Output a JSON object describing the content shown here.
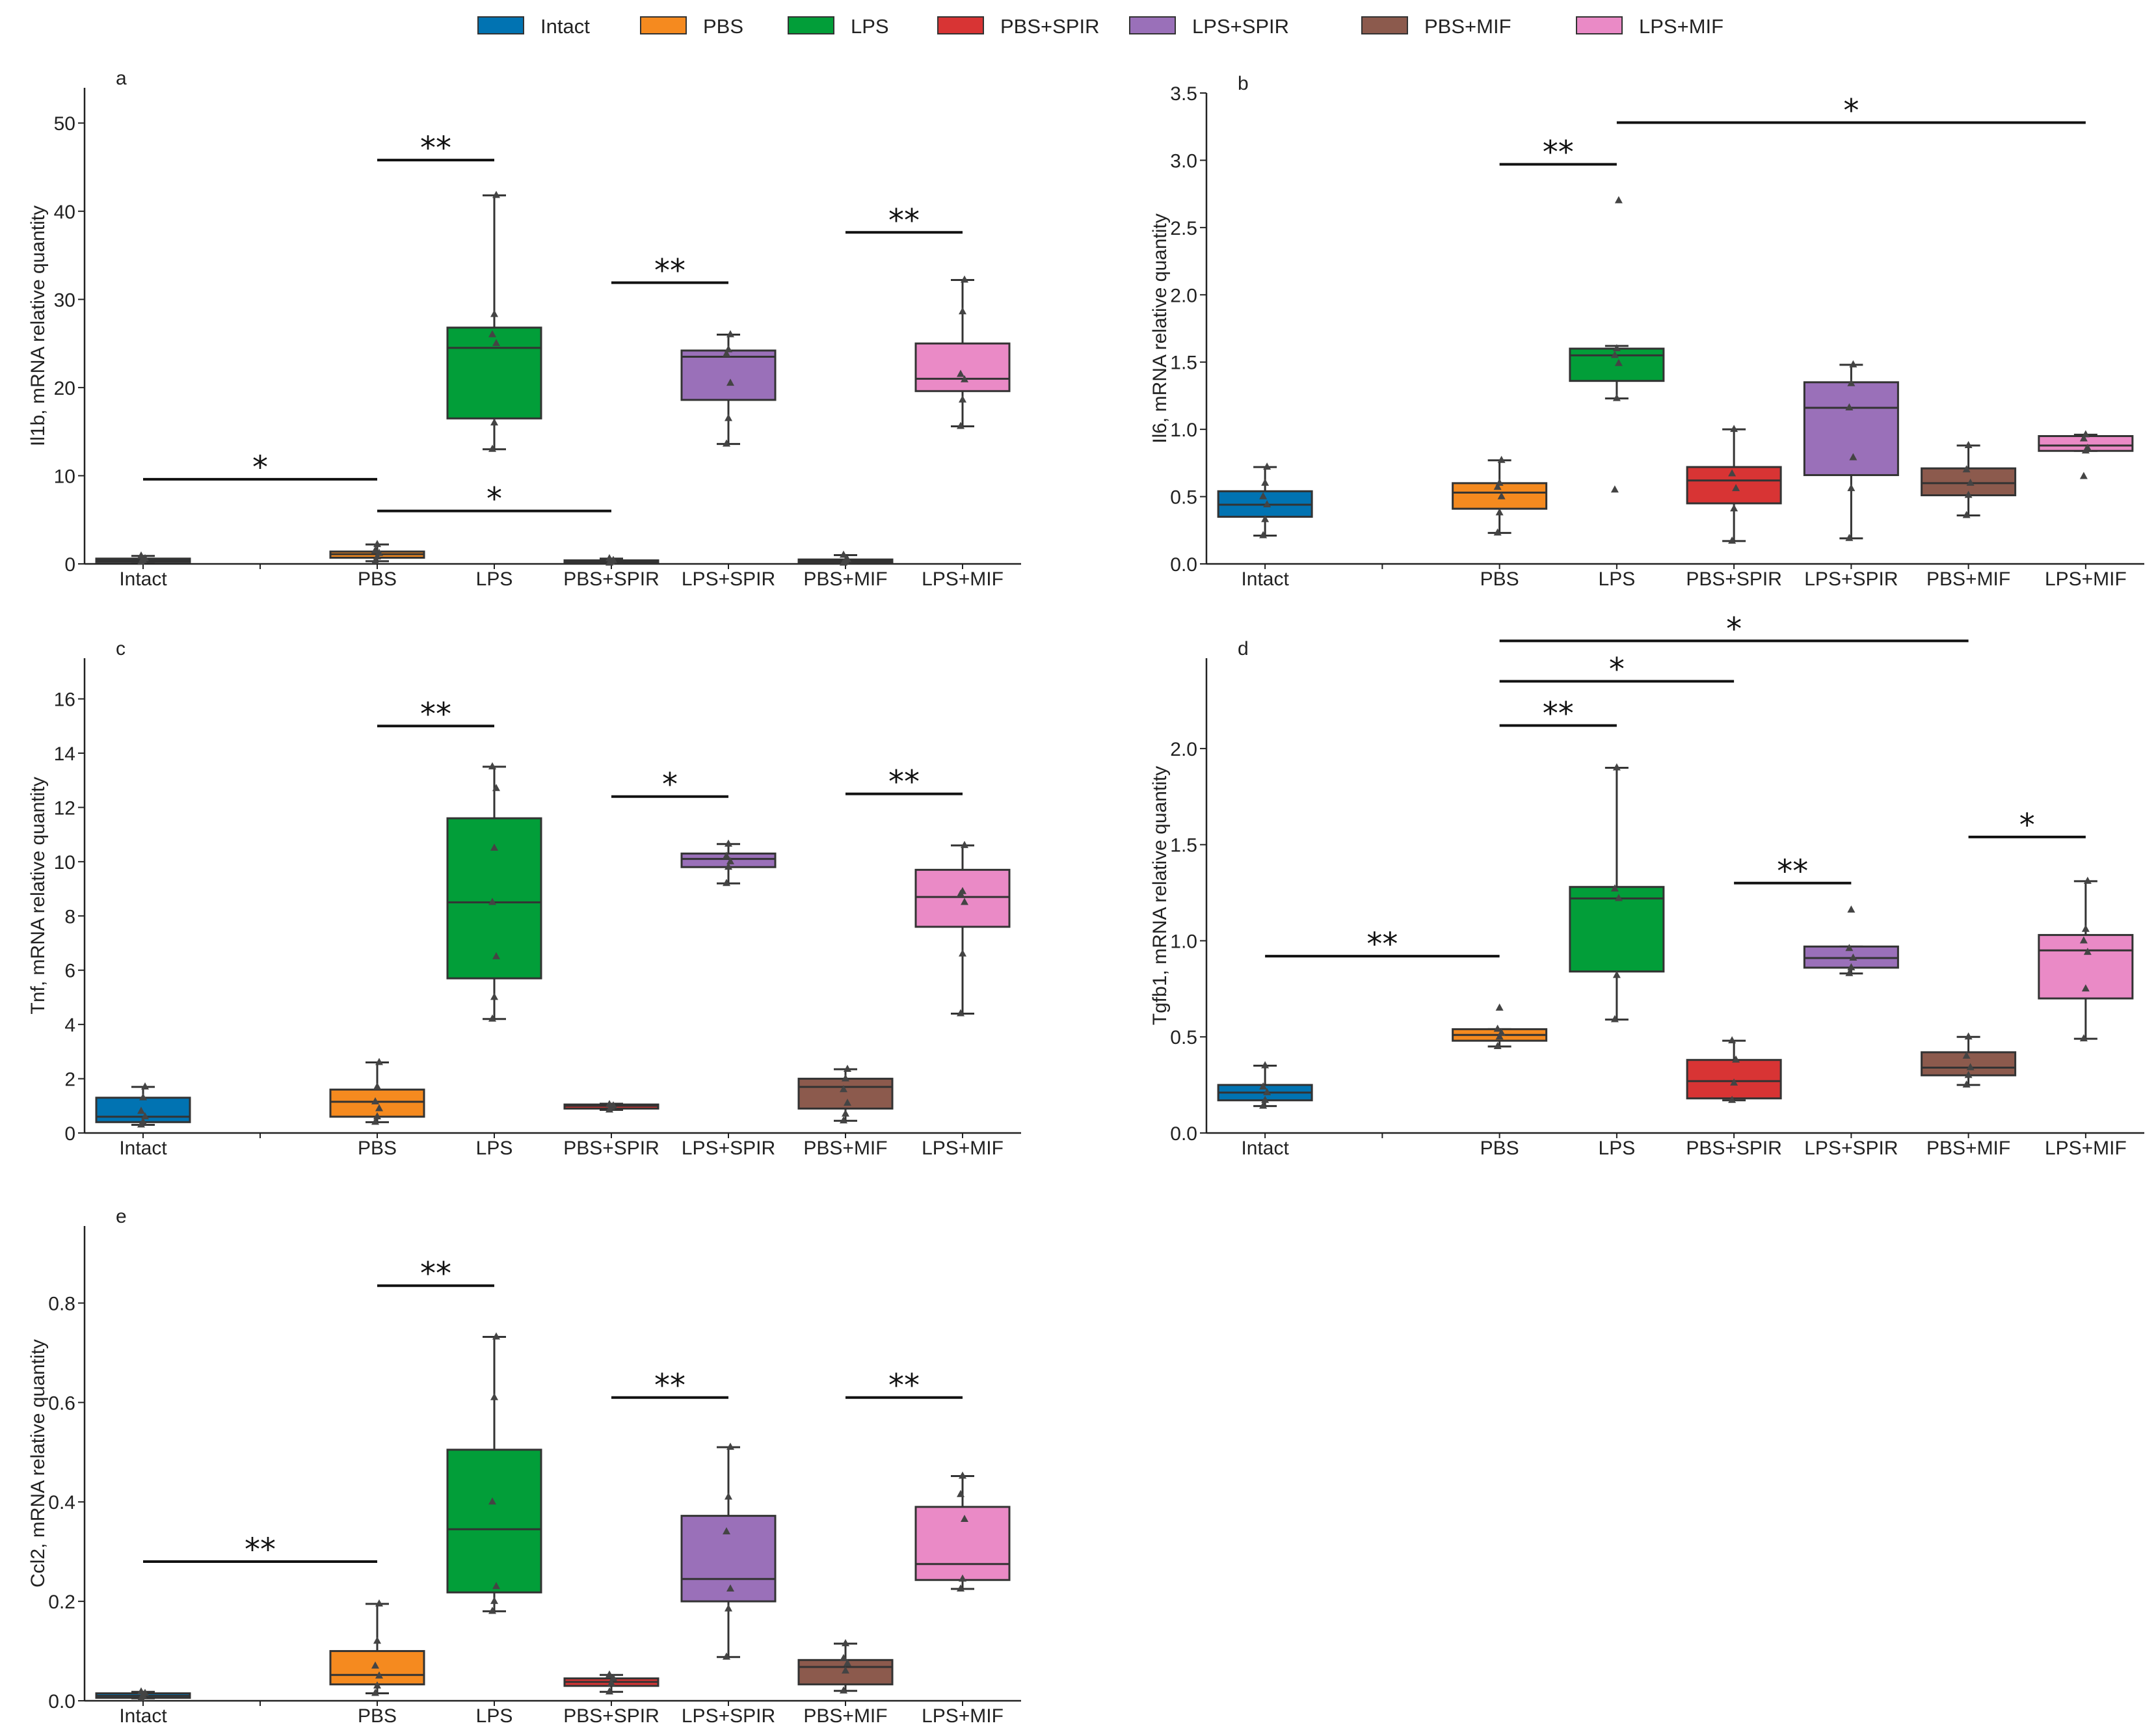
{
  "legend": {
    "items": [
      {
        "label": "Intact",
        "color": "#0173b2"
      },
      {
        "label": "PBS",
        "color": "#f58a1f"
      },
      {
        "label": "LPS",
        "color": "#029e39"
      },
      {
        "label": "PBS+SPIR",
        "color": "#d83434"
      },
      {
        "label": "LPS+SPIR",
        "color": "#9a70b9"
      },
      {
        "label": "PBS+MIF",
        "color": "#8c5a4d"
      },
      {
        "label": "LPS+MIF",
        "color": "#ea8ac6"
      }
    ]
  },
  "chart_data": [
    {
      "panel": "a",
      "type": "box",
      "ylabel": "Il1b, mRNA relative quantity",
      "ylim": [
        0,
        54
      ],
      "yticks": [
        "0",
        "10",
        "20",
        "30",
        "40",
        "50"
      ],
      "categories": [
        "Intact",
        "PBS",
        "LPS",
        "PBS+SPIR",
        "LPS+SPIR",
        "PBS+MIF",
        "LPS+MIF"
      ],
      "boxes": [
        {
          "group": "Intact",
          "min": 0.2,
          "q1": 0.2,
          "median": 0.4,
          "q3": 0.6,
          "max": 0.9,
          "points": [
            0.2,
            0.4,
            0.6,
            0.9
          ]
        },
        {
          "group": "PBS",
          "min": 0.3,
          "q1": 0.7,
          "median": 1.1,
          "q3": 1.4,
          "max": 2.2,
          "points": [
            0.3,
            0.8,
            1.2,
            1.5,
            2.2
          ]
        },
        {
          "group": "LPS",
          "min": 13,
          "q1": 16.5,
          "median": 24.5,
          "q3": 26.8,
          "max": 41.8,
          "points": [
            13,
            16,
            25,
            26,
            28.3,
            41.8
          ]
        },
        {
          "group": "PBS+SPIR",
          "min": 0.1,
          "q1": 0.1,
          "median": 0.2,
          "q3": 0.4,
          "max": 0.6,
          "points": [
            0.1,
            0.2,
            0.4,
            0.6
          ]
        },
        {
          "group": "LPS+SPIR",
          "min": 13.6,
          "q1": 18.6,
          "median": 23.5,
          "q3": 24.2,
          "max": 26,
          "points": [
            13.6,
            16.5,
            20.5,
            23.8,
            24.3,
            26
          ]
        },
        {
          "group": "PBS+MIF",
          "min": 0.1,
          "q1": 0.1,
          "median": 0.3,
          "q3": 0.5,
          "max": 1.0,
          "points": [
            0.1,
            0.3,
            0.5,
            1.0
          ]
        },
        {
          "group": "LPS+MIF",
          "min": 15.6,
          "q1": 19.6,
          "median": 21,
          "q3": 25,
          "max": 32.2,
          "points": [
            15.6,
            18.6,
            20.9,
            21.5,
            28.6,
            32.2
          ]
        }
      ],
      "significance": [
        {
          "from": "Intact",
          "to": "PBS",
          "y": 9.6,
          "label": "*"
        },
        {
          "from": "PBS",
          "to": "PBS+SPIR",
          "y": 6.0,
          "label": "*"
        },
        {
          "from": "PBS",
          "to": "LPS",
          "y": 45.8,
          "label": "**"
        },
        {
          "from": "PBS+SPIR",
          "to": "LPS+SPIR",
          "y": 31.9,
          "label": "**"
        },
        {
          "from": "PBS+MIF",
          "to": "LPS+MIF",
          "y": 37.6,
          "label": "**"
        }
      ]
    },
    {
      "panel": "b",
      "type": "box",
      "ylabel": "Il6, mRNA relative quantity",
      "ylim": [
        0,
        3.5
      ],
      "yticks": [
        "0.0",
        "0.5",
        "1.0",
        "1.5",
        "2.0",
        "2.5",
        "3.0",
        "3.5"
      ],
      "categories": [
        "Intact",
        "PBS",
        "LPS",
        "PBS+SPIR",
        "LPS+SPIR",
        "PBS+MIF",
        "LPS+MIF"
      ],
      "boxes": [
        {
          "group": "Intact",
          "min": 0.21,
          "q1": 0.35,
          "median": 0.44,
          "q3": 0.54,
          "max": 0.72,
          "points": [
            0.21,
            0.33,
            0.44,
            0.5,
            0.6,
            0.72
          ]
        },
        {
          "group": "PBS",
          "min": 0.23,
          "q1": 0.41,
          "median": 0.53,
          "q3": 0.6,
          "max": 0.77,
          "points": [
            0.23,
            0.38,
            0.5,
            0.57,
            0.6,
            0.77
          ]
        },
        {
          "group": "LPS",
          "min": 1.23,
          "q1": 1.36,
          "median": 1.55,
          "q3": 1.6,
          "max": 1.62,
          "points": [
            0.55,
            1.23,
            1.49,
            1.55,
            1.6,
            2.7
          ]
        },
        {
          "group": "PBS+SPIR",
          "min": 0.17,
          "q1": 0.45,
          "median": 0.62,
          "q3": 0.72,
          "max": 1.0,
          "points": [
            0.17,
            0.41,
            0.56,
            0.67,
            1.0
          ]
        },
        {
          "group": "LPS+SPIR",
          "min": 0.19,
          "q1": 0.66,
          "median": 1.16,
          "q3": 1.35,
          "max": 1.48,
          "points": [
            0.19,
            0.56,
            0.79,
            1.16,
            1.34,
            1.48
          ]
        },
        {
          "group": "PBS+MIF",
          "min": 0.36,
          "q1": 0.51,
          "median": 0.6,
          "q3": 0.71,
          "max": 0.88,
          "points": [
            0.36,
            0.51,
            0.6,
            0.7,
            0.88
          ]
        },
        {
          "group": "LPS+MIF",
          "min": 0.84,
          "q1": 0.84,
          "median": 0.88,
          "q3": 0.95,
          "max": 0.96,
          "points": [
            0.65,
            0.84,
            0.86,
            0.93,
            0.96
          ]
        }
      ],
      "significance": [
        {
          "from": "PBS",
          "to": "LPS",
          "y": 2.97,
          "label": "**"
        },
        {
          "from": "LPS",
          "to": "LPS+MIF",
          "y": 3.28,
          "label": "*"
        }
      ]
    },
    {
      "panel": "c",
      "type": "box",
      "ylabel": "Tnf, mRNA relative quantity",
      "ylim": [
        0,
        17.5
      ],
      "yticks": [
        "0",
        "2",
        "4",
        "6",
        "8",
        "10",
        "12",
        "14",
        "16"
      ],
      "categories": [
        "Intact",
        "PBS",
        "LPS",
        "PBS+SPIR",
        "LPS+SPIR",
        "PBS+MIF",
        "LPS+MIF"
      ],
      "boxes": [
        {
          "group": "Intact",
          "min": 0.3,
          "q1": 0.4,
          "median": 0.6,
          "q3": 1.3,
          "max": 1.7,
          "points": [
            0.3,
            0.4,
            0.6,
            0.8,
            1.3,
            1.7
          ]
        },
        {
          "group": "PBS",
          "min": 0.4,
          "q1": 0.6,
          "median": 1.15,
          "q3": 1.6,
          "max": 2.6,
          "points": [
            0.4,
            0.6,
            0.9,
            1.15,
            1.7,
            2.6
          ]
        },
        {
          "group": "LPS",
          "min": 4.2,
          "q1": 5.7,
          "median": 8.5,
          "q3": 11.6,
          "max": 13.5,
          "points": [
            4.2,
            5.0,
            6.5,
            8.5,
            10.5,
            12.7,
            13.5
          ]
        },
        {
          "group": "PBS+SPIR",
          "min": 0.85,
          "q1": 0.9,
          "median": 1.0,
          "q3": 1.05,
          "max": 1.08,
          "points": [
            0.85,
            0.95,
            1.0,
            1.05
          ]
        },
        {
          "group": "LPS+SPIR",
          "min": 9.2,
          "q1": 9.8,
          "median": 10.1,
          "q3": 10.3,
          "max": 10.65,
          "points": [
            9.2,
            9.8,
            10.0,
            10.2,
            10.65
          ]
        },
        {
          "group": "PBS+MIF",
          "min": 0.45,
          "q1": 0.9,
          "median": 1.7,
          "q3": 2.0,
          "max": 2.35,
          "points": [
            0.45,
            0.7,
            1.1,
            1.6,
            2.0,
            2.35
          ]
        },
        {
          "group": "LPS+MIF",
          "min": 4.4,
          "q1": 7.6,
          "median": 8.7,
          "q3": 9.7,
          "max": 10.6,
          "points": [
            4.4,
            6.6,
            8.5,
            8.8,
            8.9,
            10.6
          ]
        }
      ],
      "significance": [
        {
          "from": "PBS",
          "to": "LPS",
          "y": 15.0,
          "label": "**"
        },
        {
          "from": "PBS+SPIR",
          "to": "LPS+SPIR",
          "y": 12.4,
          "label": "*"
        },
        {
          "from": "PBS+MIF",
          "to": "LPS+MIF",
          "y": 12.5,
          "label": "**"
        }
      ]
    },
    {
      "panel": "d",
      "type": "box",
      "ylabel": "Tgfb1, mRNA relative quantity",
      "ylim": [
        0,
        2.47
      ],
      "yticks": [
        "0.0",
        "0.5",
        "1.0",
        "1.5",
        "2.0"
      ],
      "categories": [
        "Intact",
        "PBS",
        "LPS",
        "PBS+SPIR",
        "LPS+SPIR",
        "PBS+MIF",
        "LPS+MIF"
      ],
      "boxes": [
        {
          "group": "Intact",
          "min": 0.14,
          "q1": 0.17,
          "median": 0.21,
          "q3": 0.25,
          "max": 0.35,
          "points": [
            0.14,
            0.17,
            0.21,
            0.24,
            0.35
          ]
        },
        {
          "group": "PBS",
          "min": 0.45,
          "q1": 0.48,
          "median": 0.51,
          "q3": 0.54,
          "max": 0.54,
          "points": [
            0.45,
            0.5,
            0.52,
            0.54,
            0.65
          ]
        },
        {
          "group": "LPS",
          "min": 0.59,
          "q1": 0.84,
          "median": 1.22,
          "q3": 1.28,
          "max": 1.9,
          "points": [
            0.59,
            0.82,
            1.22,
            1.27,
            1.9
          ]
        },
        {
          "group": "PBS+SPIR",
          "min": 0.17,
          "q1": 0.18,
          "median": 0.27,
          "q3": 0.38,
          "max": 0.48,
          "points": [
            0.17,
            0.26,
            0.38,
            0.48
          ]
        },
        {
          "group": "LPS+SPIR",
          "min": 0.83,
          "q1": 0.86,
          "median": 0.91,
          "q3": 0.97,
          "max": 0.97,
          "points": [
            0.83,
            0.86,
            0.91,
            0.96,
            1.16
          ]
        },
        {
          "group": "PBS+MIF",
          "min": 0.25,
          "q1": 0.3,
          "median": 0.34,
          "q3": 0.42,
          "max": 0.5,
          "points": [
            0.25,
            0.3,
            0.34,
            0.4,
            0.5
          ]
        },
        {
          "group": "LPS+MIF",
          "min": 0.49,
          "q1": 0.7,
          "median": 0.95,
          "q3": 1.03,
          "max": 1.31,
          "points": [
            0.49,
            0.75,
            0.94,
            1.0,
            1.06,
            1.31
          ]
        }
      ],
      "significance": [
        {
          "from": "Intact",
          "to": "PBS",
          "y": 0.92,
          "label": "**"
        },
        {
          "from": "PBS",
          "to": "LPS",
          "y": 2.12,
          "label": "**"
        },
        {
          "from": "PBS",
          "to": "PBS+SPIR",
          "y": 2.35,
          "label": "*"
        },
        {
          "from": "PBS",
          "to": "PBS+MIF",
          "y": 2.56,
          "label": "*"
        },
        {
          "from": "PBS+SPIR",
          "to": "LPS+SPIR",
          "y": 1.3,
          "label": "**"
        },
        {
          "from": "PBS+MIF",
          "to": "LPS+MIF",
          "y": 1.54,
          "label": "*"
        }
      ]
    },
    {
      "panel": "e",
      "type": "box",
      "ylabel": "Ccl2, mRNA relative quantity",
      "ylim": [
        0,
        0.955
      ],
      "yticks": [
        "0.0",
        "0.2",
        "0.4",
        "0.6",
        "0.8"
      ],
      "categories": [
        "Intact",
        "PBS",
        "LPS",
        "PBS+SPIR",
        "LPS+SPIR",
        "PBS+MIF",
        "LPS+MIF"
      ],
      "boxes": [
        {
          "group": "Intact",
          "min": 0.005,
          "q1": 0.006,
          "median": 0.01,
          "q3": 0.015,
          "max": 0.018,
          "points": [
            0.005,
            0.01,
            0.015,
            0.018
          ]
        },
        {
          "group": "PBS",
          "min": 0.015,
          "q1": 0.033,
          "median": 0.052,
          "q3": 0.1,
          "max": 0.195,
          "points": [
            0.015,
            0.03,
            0.05,
            0.07,
            0.12,
            0.195
          ]
        },
        {
          "group": "LPS",
          "min": 0.18,
          "q1": 0.218,
          "median": 0.345,
          "q3": 0.505,
          "max": 0.732,
          "points": [
            0.18,
            0.2,
            0.23,
            0.4,
            0.61,
            0.732
          ]
        },
        {
          "group": "PBS+SPIR",
          "min": 0.018,
          "q1": 0.03,
          "median": 0.038,
          "q3": 0.045,
          "max": 0.052,
          "points": [
            0.018,
            0.035,
            0.045,
            0.052
          ]
        },
        {
          "group": "LPS+SPIR",
          "min": 0.088,
          "q1": 0.2,
          "median": 0.245,
          "q3": 0.372,
          "max": 0.51,
          "points": [
            0.088,
            0.185,
            0.225,
            0.34,
            0.41,
            0.51
          ]
        },
        {
          "group": "PBS+MIF",
          "min": 0.02,
          "q1": 0.033,
          "median": 0.068,
          "q3": 0.082,
          "max": 0.115,
          "points": [
            0.02,
            0.06,
            0.075,
            0.085,
            0.115
          ]
        },
        {
          "group": "LPS+MIF",
          "min": 0.225,
          "q1": 0.243,
          "median": 0.275,
          "q3": 0.39,
          "max": 0.452,
          "points": [
            0.225,
            0.245,
            0.365,
            0.415,
            0.452
          ]
        }
      ],
      "significance": [
        {
          "from": "Intact",
          "to": "PBS",
          "y": 0.28,
          "label": "**"
        },
        {
          "from": "PBS",
          "to": "LPS",
          "y": 0.835,
          "label": "**"
        },
        {
          "from": "PBS+SPIR",
          "to": "LPS+SPIR",
          "y": 0.61,
          "label": "**"
        },
        {
          "from": "PBS+MIF",
          "to": "LPS+MIF",
          "y": 0.61,
          "label": "**"
        }
      ]
    }
  ]
}
